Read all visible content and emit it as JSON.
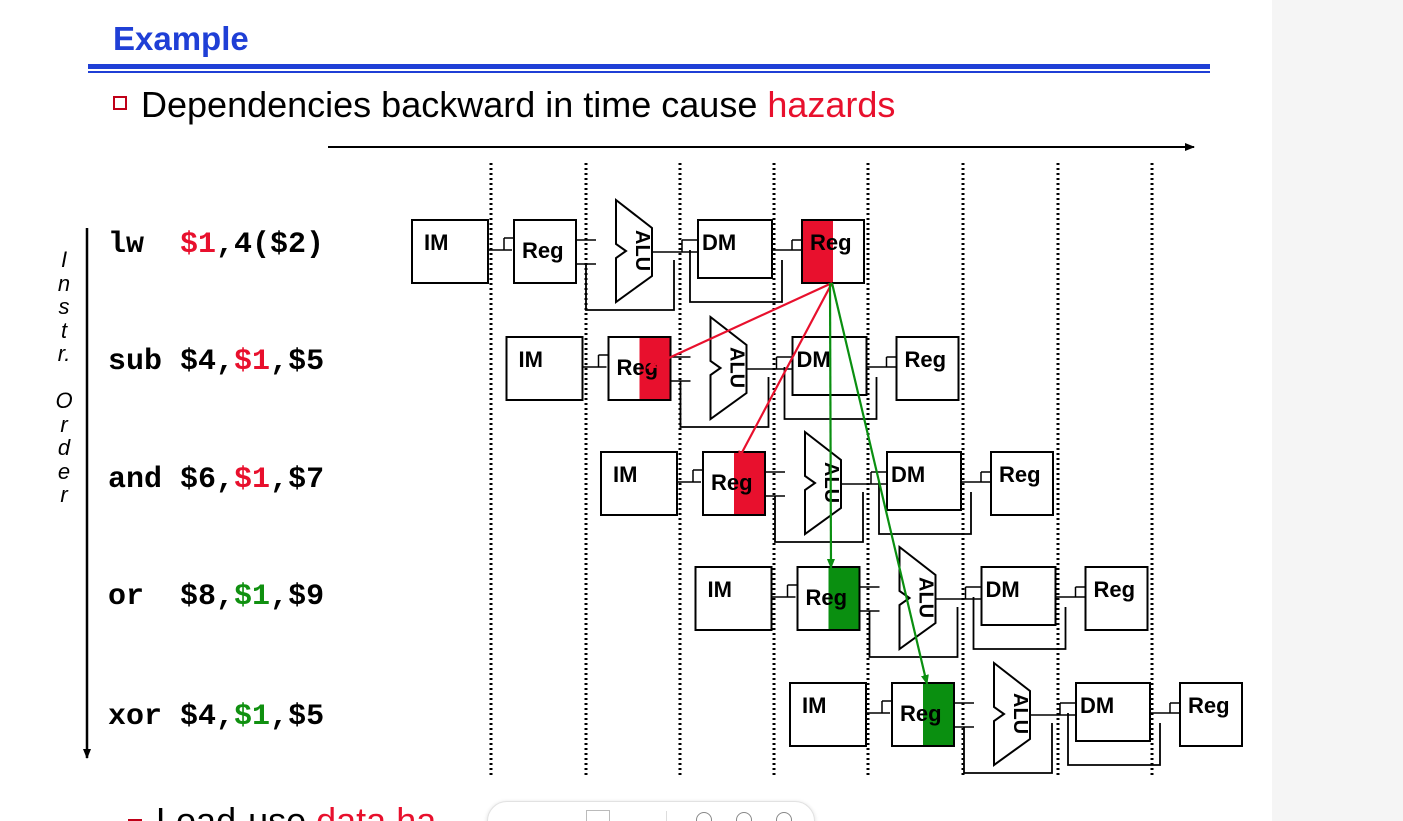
{
  "title": "Example",
  "bullet": {
    "prefix": "Dependencies backward in time cause ",
    "highlight": "hazards"
  },
  "axis_label": [
    "I",
    "n",
    "s",
    "t",
    "r.",
    "",
    "O",
    "r",
    "d",
    "e",
    "r"
  ],
  "instructions": [
    {
      "op": "lw",
      "before": "$1",
      "sep1": ",4($2)",
      "mid": "",
      "after": "",
      "reg_color": "red"
    },
    {
      "op": "sub",
      "before": "$4,",
      "reg": "$1",
      "after": ",$5",
      "reg_color": "red"
    },
    {
      "op": "and",
      "before": "$6,",
      "reg": "$1",
      "after": ",$7",
      "reg_color": "red"
    },
    {
      "op": "or",
      "before": "$8,",
      "reg": "$1",
      "after": ",$9",
      "reg_color": "green"
    },
    {
      "op": "xor",
      "before": "$4,",
      "reg": "$1",
      "after": ",$5",
      "reg_color": "green"
    }
  ],
  "stage_labels": {
    "im": "IM",
    "reg": "Reg",
    "alu": "ALU",
    "dm": "DM"
  },
  "highlight_colors": {
    "red": "#e8102d",
    "green": "#0a8f10"
  },
  "footer": {
    "prefix": "Load-use ",
    "highlight": "data ha"
  }
}
